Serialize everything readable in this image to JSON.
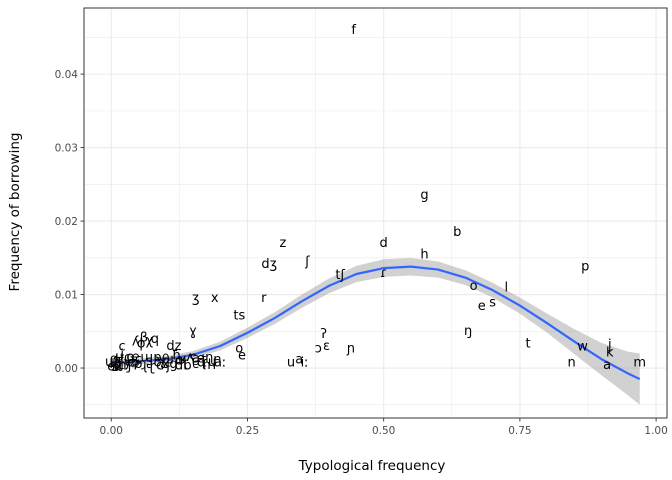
{
  "chart_data": {
    "type": "scatter",
    "xlabel": "Typological frequency",
    "ylabel": "Frequency of borrowing",
    "xlim": [
      -0.05,
      1.02
    ],
    "ylim": [
      -0.0068,
      0.049
    ],
    "x_ticks": [
      0.0,
      0.25,
      0.5,
      0.75,
      1.0
    ],
    "x_tick_labels": [
      "0.00",
      "0.25",
      "0.50",
      "0.75",
      "1.00"
    ],
    "y_ticks": [
      0.0,
      0.01,
      0.02,
      0.03,
      0.04
    ],
    "y_tick_labels": [
      "0.00",
      "0.01",
      "0.02",
      "0.03",
      "0.04"
    ],
    "grid": true,
    "points": [
      {
        "label": "f",
        "x": 0.445,
        "y": 0.0461
      },
      {
        "label": "g",
        "x": 0.575,
        "y": 0.0236
      },
      {
        "label": "b",
        "x": 0.635,
        "y": 0.0186
      },
      {
        "label": "d",
        "x": 0.5,
        "y": 0.0171
      },
      {
        "label": "h",
        "x": 0.575,
        "y": 0.0155
      },
      {
        "label": "z",
        "x": 0.315,
        "y": 0.0171
      },
      {
        "label": "ʃ",
        "x": 0.36,
        "y": 0.0146
      },
      {
        "label": "dʒ",
        "x": 0.29,
        "y": 0.0142
      },
      {
        "label": "p",
        "x": 0.87,
        "y": 0.0139
      },
      {
        "label": "tʃ",
        "x": 0.42,
        "y": 0.0127
      },
      {
        "label": "ɾ",
        "x": 0.5,
        "y": 0.013
      },
      {
        "label": "l",
        "x": 0.725,
        "y": 0.011
      },
      {
        "label": "o",
        "x": 0.665,
        "y": 0.0112
      },
      {
        "label": "s",
        "x": 0.7,
        "y": 0.009
      },
      {
        "label": "e",
        "x": 0.68,
        "y": 0.0085
      },
      {
        "label": "ʒ",
        "x": 0.155,
        "y": 0.0096
      },
      {
        "label": "x",
        "x": 0.19,
        "y": 0.0096
      },
      {
        "label": "r",
        "x": 0.28,
        "y": 0.0096
      },
      {
        "label": "ts",
        "x": 0.235,
        "y": 0.0072
      },
      {
        "label": "ŋ",
        "x": 0.655,
        "y": 0.0051
      },
      {
        "label": "ɣ",
        "x": 0.15,
        "y": 0.0051
      },
      {
        "label": "ʔ",
        "x": 0.39,
        "y": 0.0047
      },
      {
        "label": "t",
        "x": 0.765,
        "y": 0.0034
      },
      {
        "label": "ɛ",
        "x": 0.395,
        "y": 0.0031
      },
      {
        "label": "ɔ",
        "x": 0.38,
        "y": 0.0027
      },
      {
        "label": "ɲ",
        "x": 0.44,
        "y": 0.0027
      },
      {
        "label": "w",
        "x": 0.865,
        "y": 0.003
      },
      {
        "label": "j",
        "x": 0.915,
        "y": 0.0033
      },
      {
        "label": "k",
        "x": 0.915,
        "y": 0.0022
      },
      {
        "label": "m",
        "x": 0.97,
        "y": 0.0008
      },
      {
        "label": "n",
        "x": 0.845,
        "y": 0.0008
      },
      {
        "label": "a",
        "x": 0.91,
        "y": 0.0005
      },
      {
        "label": "u",
        "x": 0.33,
        "y": 0.0008
      },
      {
        "label": "a",
        "x": 0.345,
        "y": 0.0012
      },
      {
        "label": "iː",
        "x": 0.355,
        "y": 0.0008
      },
      {
        "label": "o",
        "x": 0.235,
        "y": 0.0027
      },
      {
        "label": "e",
        "x": 0.24,
        "y": 0.0018
      },
      {
        "label": "aː",
        "x": 0.2,
        "y": 0.0008
      },
      {
        "label": "ʎ",
        "x": 0.045,
        "y": 0.0037
      },
      {
        "label": "q",
        "x": 0.08,
        "y": 0.004
      },
      {
        "label": "dz",
        "x": 0.115,
        "y": 0.0031
      },
      {
        "label": "c",
        "x": 0.02,
        "y": 0.003
      },
      {
        "label": "ɸ",
        "x": 0.055,
        "y": 0.0034
      },
      {
        "label": "β",
        "x": 0.06,
        "y": 0.0042
      },
      {
        "label": "χ",
        "x": 0.07,
        "y": 0.0038
      },
      {
        "label": "ɲ",
        "x": 0.195,
        "y": 0.0012
      },
      {
        "label": "ʁ",
        "x": 0.13,
        "y": 0.0012
      },
      {
        "label": "ʕ",
        "x": 0.15,
        "y": 0.0012
      },
      {
        "label": "ħ",
        "x": 0.12,
        "y": 0.0018
      },
      {
        "label": "ɳ",
        "x": 0.18,
        "y": 0.0015
      },
      {
        "label": "ʈ",
        "x": 0.17,
        "y": 0.0012
      },
      {
        "label": "ɖ",
        "x": 0.165,
        "y": 0.0008
      },
      {
        "label": "ɭ",
        "x": 0.135,
        "y": 0.0008
      },
      {
        "label": "θ",
        "x": 0.1,
        "y": 0.0012
      },
      {
        "label": "ð",
        "x": 0.085,
        "y": 0.0008
      },
      {
        "label": "ʂ",
        "x": 0.07,
        "y": 0.001
      },
      {
        "label": "ɕ",
        "x": 0.05,
        "y": 0.0012
      },
      {
        "label": "ʑ",
        "x": 0.04,
        "y": 0.0008
      },
      {
        "label": "ç",
        "x": 0.03,
        "y": 0.0015
      },
      {
        "label": "ɟ",
        "x": 0.015,
        "y": 0.001
      },
      {
        "label": "ʝ",
        "x": 0.02,
        "y": 0.0006
      },
      {
        "label": "ɬ",
        "x": 0.01,
        "y": 0.0012
      },
      {
        "label": "ɮ",
        "x": 0.005,
        "y": 0.0006
      },
      {
        "label": "ɱ",
        "x": 0.025,
        "y": 0.0004
      },
      {
        "label": "ʋ",
        "x": 0.035,
        "y": 0.0012
      },
      {
        "label": "ɰ",
        "x": 0.0,
        "y": 0.0009
      },
      {
        "label": "ʙ",
        "x": 0.008,
        "y": 0.0002
      },
      {
        "label": "ʀ",
        "x": 0.012,
        "y": 0.0004
      },
      {
        "label": "ɻ",
        "x": 0.06,
        "y": 0.0004
      },
      {
        "label": "ɽ",
        "x": 0.075,
        "y": 0.0003
      },
      {
        "label": "ɢ",
        "x": 0.09,
        "y": 0.0004
      },
      {
        "label": "ʄ",
        "x": 0.105,
        "y": 0.0004
      },
      {
        "label": "ɠ",
        "x": 0.115,
        "y": 0.0006
      },
      {
        "label": "ɗ",
        "x": 0.125,
        "y": 0.0004
      },
      {
        "label": "ɓ",
        "x": 0.14,
        "y": 0.0004
      },
      {
        "label": "ʔ",
        "x": 0.045,
        "y": 0.0004
      },
      {
        "label": "ɣ",
        "x": 0.095,
        "y": 0.001
      },
      {
        "label": "ɹ",
        "x": 0.11,
        "y": 0.0012
      },
      {
        "label": "ɦ",
        "x": 0.175,
        "y": 0.0005
      },
      {
        "label": "ɥ",
        "x": 0.185,
        "y": 0.0009
      },
      {
        "label": "ɯ",
        "x": 0.065,
        "y": 0.0015
      },
      {
        "label": "ɨ",
        "x": 0.02,
        "y": 0.0019
      },
      {
        "label": "ø",
        "x": 0.05,
        "y": 0.0006
      },
      {
        "label": "y",
        "x": 0.03,
        "y": 0.0008
      },
      {
        "label": "œ",
        "x": 0.04,
        "y": 0.0016
      },
      {
        "label": "ɤ",
        "x": 0.1,
        "y": 0.0006
      },
      {
        "label": "ʉ",
        "x": 0.015,
        "y": 0.0016
      },
      {
        "label": "ɘ",
        "x": 0.005,
        "y": 0.0013
      },
      {
        "label": "ɵ",
        "x": 0.0,
        "y": 0.0003
      },
      {
        "label": "ʌ",
        "x": 0.145,
        "y": 0.0016
      },
      {
        "label": "ɐ",
        "x": 0.155,
        "y": 0.0006
      },
      {
        "label": "æ",
        "x": 0.16,
        "y": 0.0014
      },
      {
        "label": "ɒ",
        "x": 0.085,
        "y": 0.0015
      },
      {
        "label": "ɑ",
        "x": 0.125,
        "y": 0.0011
      }
    ],
    "smooth": {
      "color": "#3366FF",
      "band_color": "#999999",
      "x": [
        0.0,
        0.05,
        0.1,
        0.15,
        0.2,
        0.25,
        0.3,
        0.35,
        0.4,
        0.45,
        0.5,
        0.55,
        0.6,
        0.65,
        0.7,
        0.75,
        0.8,
        0.85,
        0.9,
        0.95,
        0.97
      ],
      "y": [
        0.0007,
        0.0009,
        0.0012,
        0.0018,
        0.003,
        0.0048,
        0.0068,
        0.0091,
        0.0112,
        0.0128,
        0.0136,
        0.0138,
        0.0134,
        0.0123,
        0.0106,
        0.0085,
        0.0061,
        0.0036,
        0.0012,
        -0.0008,
        -0.0015
      ],
      "lower": [
        0.0002,
        0.0005,
        0.0008,
        0.0013,
        0.0024,
        0.0041,
        0.006,
        0.0082,
        0.0102,
        0.0117,
        0.0124,
        0.0126,
        0.0123,
        0.0113,
        0.0096,
        0.0074,
        0.0048,
        0.0019,
        -0.001,
        -0.0038,
        -0.005
      ],
      "upper": [
        0.0012,
        0.0013,
        0.0016,
        0.0023,
        0.0036,
        0.0055,
        0.0076,
        0.01,
        0.0122,
        0.0139,
        0.0148,
        0.015,
        0.0145,
        0.0133,
        0.0116,
        0.0096,
        0.0074,
        0.0053,
        0.0034,
        0.0022,
        0.002
      ]
    }
  }
}
